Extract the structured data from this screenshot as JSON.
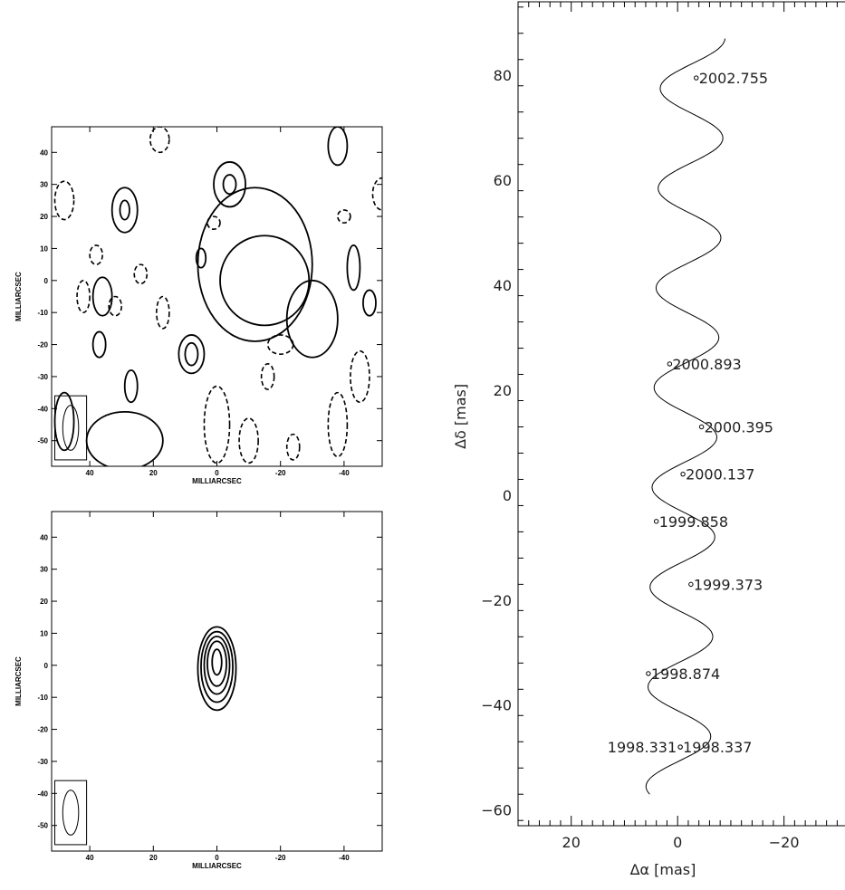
{
  "chart_data": [
    {
      "type": "contour",
      "panel": "top-left",
      "xlabel": "MILLIARCSEC",
      "ylabel": "MILLIARCSEC",
      "xlim": [
        52,
        -52
      ],
      "ylim": [
        -58,
        48
      ],
      "xticks": [
        40,
        20,
        0,
        -20,
        -40
      ],
      "yticks": [
        40,
        30,
        20,
        10,
        0,
        -10,
        -20,
        -30,
        -40,
        -50
      ],
      "contours": {
        "positive": [
          {
            "cx": -15,
            "cy": 0,
            "rx": 14,
            "ry": 14
          },
          {
            "cx": -12,
            "cy": 5,
            "rx": 18,
            "ry": 24
          },
          {
            "cx": -4,
            "cy": 30,
            "rx": 5,
            "ry": 7
          },
          {
            "cx": -4,
            "cy": 30,
            "rx": 2,
            "ry": 3
          },
          {
            "cx": -30,
            "cy": -12,
            "rx": 8,
            "ry": 12
          },
          {
            "cx": 29,
            "cy": 22,
            "rx": 4,
            "ry": 7
          },
          {
            "cx": 29,
            "cy": 22,
            "rx": 1.5,
            "ry": 3
          },
          {
            "cx": 8,
            "cy": -23,
            "rx": 4,
            "ry": 6
          },
          {
            "cx": 8,
            "cy": -23,
            "rx": 2,
            "ry": 3.5
          },
          {
            "cx": 48,
            "cy": -44,
            "rx": 3,
            "ry": 9
          },
          {
            "cx": 29,
            "cy": -50,
            "rx": 12,
            "ry": 9
          },
          {
            "cx": 27,
            "cy": -33,
            "rx": 2,
            "ry": 5
          },
          {
            "cx": 37,
            "cy": -20,
            "rx": 2,
            "ry": 4
          },
          {
            "cx": 36,
            "cy": -5,
            "rx": 3,
            "ry": 6
          },
          {
            "cx": 5,
            "cy": 7,
            "rx": 1.5,
            "ry": 3
          },
          {
            "cx": -48,
            "cy": -7,
            "rx": 2,
            "ry": 4
          },
          {
            "cx": -43,
            "cy": 4,
            "rx": 2,
            "ry": 7
          },
          {
            "cx": -38,
            "cy": 42,
            "rx": 3,
            "ry": 6
          }
        ],
        "negative": [
          {
            "cx": 42,
            "cy": -5,
            "rx": 2,
            "ry": 5
          },
          {
            "cx": 32,
            "cy": -8,
            "rx": 2,
            "ry": 3
          },
          {
            "cx": 17,
            "cy": -10,
            "rx": 2,
            "ry": 5
          },
          {
            "cx": 24,
            "cy": 2,
            "rx": 2,
            "ry": 3
          },
          {
            "cx": 38,
            "cy": 8,
            "rx": 2,
            "ry": 3
          },
          {
            "cx": -16,
            "cy": -30,
            "rx": 2,
            "ry": 4
          },
          {
            "cx": -20,
            "cy": -20,
            "rx": 4,
            "ry": 3
          },
          {
            "cx": 1,
            "cy": 18,
            "rx": 2,
            "ry": 2
          },
          {
            "cx": -45,
            "cy": -30,
            "rx": 3,
            "ry": 8
          },
          {
            "cx": -38,
            "cy": -45,
            "rx": 3,
            "ry": 10
          },
          {
            "cx": 0,
            "cy": -45,
            "rx": 4,
            "ry": 12
          },
          {
            "cx": -10,
            "cy": -50,
            "rx": 3,
            "ry": 7
          },
          {
            "cx": -40,
            "cy": 20,
            "rx": 2,
            "ry": 2
          },
          {
            "cx": -52,
            "cy": 27,
            "rx": 3,
            "ry": 5
          },
          {
            "cx": 48,
            "cy": 25,
            "rx": 3,
            "ry": 6
          },
          {
            "cx": 18,
            "cy": 44,
            "rx": 3,
            "ry": 4
          },
          {
            "cx": -24,
            "cy": -52,
            "rx": 2,
            "ry": 4
          }
        ]
      },
      "beam": {
        "cx": 46,
        "cy": -46,
        "rx": 2.5,
        "ry": 7
      },
      "beam_box": {
        "x1": 51,
        "x2": 41,
        "y1": -56,
        "y2": -36
      }
    },
    {
      "type": "contour",
      "panel": "bottom-left",
      "xlabel": "MILLIARCSEC",
      "ylabel": "MILLIARCSEC",
      "xlim": [
        52,
        -52
      ],
      "ylim": [
        -58,
        48
      ],
      "xticks": [
        40,
        20,
        0,
        -20,
        -40
      ],
      "yticks": [
        40,
        30,
        20,
        10,
        0,
        -10,
        -20,
        -30,
        -40,
        -50
      ],
      "contours": {
        "positive": [
          {
            "cx": 0,
            "cy": -1,
            "rx": 6,
            "ry": 13
          },
          {
            "cx": 0,
            "cy": -0.5,
            "rx": 5,
            "ry": 11
          },
          {
            "cx": 0,
            "cy": 0,
            "rx": 4,
            "ry": 9
          },
          {
            "cx": 0,
            "cy": 0.5,
            "rx": 3,
            "ry": 7
          },
          {
            "cx": 0,
            "cy": 1,
            "rx": 1.5,
            "ry": 4
          }
        ],
        "negative": []
      },
      "beam": {
        "cx": 46,
        "cy": -46,
        "rx": 2.5,
        "ry": 7
      },
      "beam_box": {
        "x1": 51,
        "x2": 41,
        "y1": -56,
        "y2": -36
      }
    },
    {
      "type": "line",
      "panel": "right",
      "xlabel": "Δα [mas]",
      "ylabel": "Δδ [mas]",
      "xlim": [
        30,
        -33
      ],
      "ylim": [
        -63,
        94
      ],
      "xticks": [
        20,
        0,
        -20
      ],
      "yticks": [
        80,
        60,
        40,
        20,
        0,
        -20,
        -40,
        -60
      ],
      "track": {
        "y_start": -57,
        "y_end": 87,
        "amplitude": 6,
        "period": 19,
        "phase_y": -46,
        "drift": 0.04
      },
      "epochs": [
        {
          "label": "2002.755",
          "x": -3.5,
          "y": 79.5,
          "side": "right"
        },
        {
          "label": "2000.893",
          "x": 1.5,
          "y": 25,
          "side": "right"
        },
        {
          "label": "2000.395",
          "x": -4.5,
          "y": 13,
          "side": "right"
        },
        {
          "label": "2000.137",
          "x": -1,
          "y": 4,
          "side": "right"
        },
        {
          "label": "1999.858",
          "x": 4,
          "y": -5,
          "side": "right"
        },
        {
          "label": "1999.373",
          "x": -2.5,
          "y": -17,
          "side": "right"
        },
        {
          "label": "1998.874",
          "x": 5.5,
          "y": -34,
          "side": "right"
        },
        {
          "label": "1998.331",
          "x": -0.5,
          "y": -48,
          "side": "left"
        },
        {
          "label": "1998.337",
          "x": -0.5,
          "y": -48,
          "side": "right"
        }
      ]
    }
  ]
}
